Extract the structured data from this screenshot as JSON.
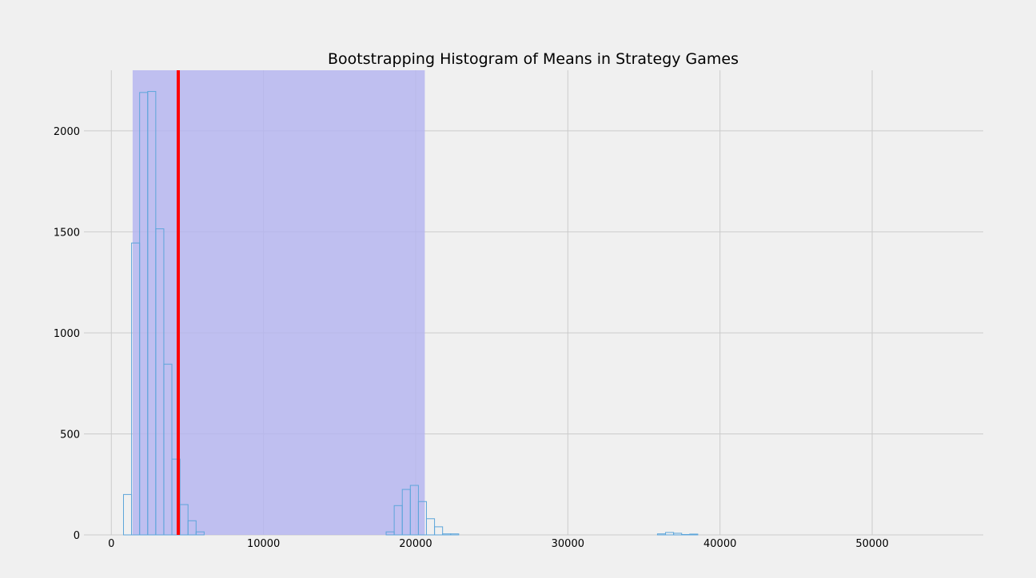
{
  "chart_data": {
    "type": "histogram",
    "title": "Bootstrapping Histogram of Means in Strategy Games",
    "xlabel": "",
    "ylabel": "",
    "xlim": [
      -1800,
      57300
    ],
    "ylim": [
      0,
      2300
    ],
    "x_ticks": [
      0,
      10000,
      20000,
      30000,
      40000,
      50000
    ],
    "x_tick_labels": [
      "0",
      "10000",
      "20000",
      "30000",
      "40000",
      "50000"
    ],
    "y_ticks": [
      0,
      500,
      1000,
      1500,
      2000
    ],
    "y_tick_labels": [
      "0",
      "500",
      "1000",
      "1500",
      "2000"
    ],
    "grid": true,
    "bins": [
      {
        "x0": 800,
        "x1": 1330,
        "count": 200
      },
      {
        "x0": 1330,
        "x1": 1860,
        "count": 1445
      },
      {
        "x0": 1860,
        "x1": 2390,
        "count": 2190
      },
      {
        "x0": 2390,
        "x1": 2920,
        "count": 2195
      },
      {
        "x0": 2920,
        "x1": 3450,
        "count": 1515
      },
      {
        "x0": 3450,
        "x1": 3980,
        "count": 845
      },
      {
        "x0": 3980,
        "x1": 4510,
        "count": 375
      },
      {
        "x0": 4510,
        "x1": 5040,
        "count": 150
      },
      {
        "x0": 5040,
        "x1": 5570,
        "count": 70
      },
      {
        "x0": 5570,
        "x1": 6100,
        "count": 15
      },
      {
        "x0": 18060,
        "x1": 18590,
        "count": 15
      },
      {
        "x0": 18590,
        "x1": 19120,
        "count": 145
      },
      {
        "x0": 19120,
        "x1": 19650,
        "count": 225
      },
      {
        "x0": 19650,
        "x1": 20180,
        "count": 245
      },
      {
        "x0": 20180,
        "x1": 20710,
        "count": 165
      },
      {
        "x0": 20710,
        "x1": 21240,
        "count": 80
      },
      {
        "x0": 21240,
        "x1": 21770,
        "count": 40
      },
      {
        "x0": 21770,
        "x1": 22300,
        "count": 5
      },
      {
        "x0": 22300,
        "x1": 22830,
        "count": 5
      },
      {
        "x0": 35890,
        "x1": 36420,
        "count": 5
      },
      {
        "x0": 36420,
        "x1": 36950,
        "count": 12
      },
      {
        "x0": 36950,
        "x1": 37480,
        "count": 8
      },
      {
        "x0": 37480,
        "x1": 38010,
        "count": 2
      },
      {
        "x0": 38010,
        "x1": 38540,
        "count": 4
      }
    ],
    "histogram_style": "step",
    "shaded_interval": [
      1400,
      20600
    ],
    "mean_line_x": 4400,
    "colors": {
      "background": "#f0f0f0",
      "grid": "#cbcbcb",
      "histogram": "#5da5da",
      "interval_fill": "#b3b3f0",
      "mean_line": "#ff0000"
    }
  }
}
